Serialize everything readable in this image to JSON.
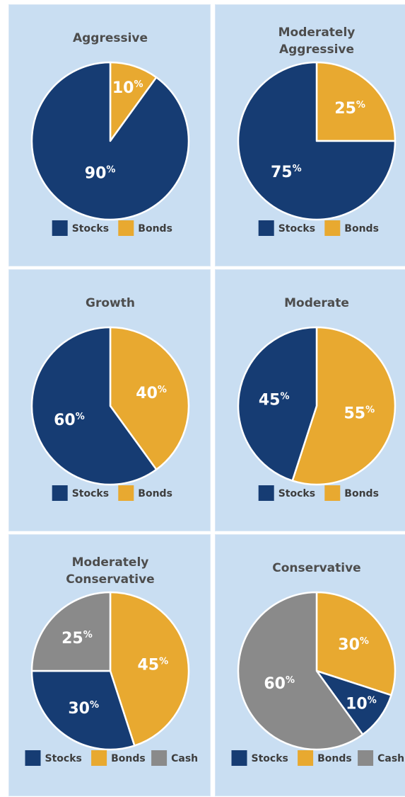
{
  "colors": {
    "stocks": "#163c73",
    "bonds": "#e8a930",
    "cash": "#8a8a8a",
    "background": "#c9def2",
    "divider": "#ffffff"
  },
  "chart_data": [
    {
      "type": "pie",
      "title": "Aggressive",
      "series": [
        {
          "name": "Stocks",
          "value": 90,
          "label": "90%",
          "color": "#163c73"
        },
        {
          "name": "Bonds",
          "value": 10,
          "label": "10%",
          "color": "#e8a930"
        }
      ]
    },
    {
      "type": "pie",
      "title": "Moderately Aggressive",
      "series": [
        {
          "name": "Stocks",
          "value": 75,
          "label": "75%",
          "color": "#163c73"
        },
        {
          "name": "Bonds",
          "value": 25,
          "label": "25%",
          "color": "#e8a930"
        }
      ]
    },
    {
      "type": "pie",
      "title": "Growth",
      "series": [
        {
          "name": "Stocks",
          "value": 60,
          "label": "60%",
          "color": "#163c73"
        },
        {
          "name": "Bonds",
          "value": 40,
          "label": "40%",
          "color": "#e8a930"
        }
      ]
    },
    {
      "type": "pie",
      "title": "Moderate",
      "series": [
        {
          "name": "Stocks",
          "value": 45,
          "label": "45%",
          "color": "#163c73"
        },
        {
          "name": "Bonds",
          "value": 55,
          "label": "55%",
          "color": "#e8a930"
        }
      ]
    },
    {
      "type": "pie",
      "title": "Moderately Conservative",
      "series": [
        {
          "name": "Stocks",
          "value": 30,
          "label": "30%",
          "color": "#163c73"
        },
        {
          "name": "Bonds",
          "value": 45,
          "label": "45%",
          "color": "#e8a930"
        },
        {
          "name": "Cash",
          "value": 25,
          "label": "25%",
          "color": "#8a8a8a"
        }
      ]
    },
    {
      "type": "pie",
      "title": "Conservative",
      "series": [
        {
          "name": "Stocks",
          "value": 10,
          "label": "10%",
          "color": "#163c73"
        },
        {
          "name": "Bonds",
          "value": 30,
          "label": "30%",
          "color": "#e8a930"
        },
        {
          "name": "Cash",
          "value": 60,
          "label": "60%",
          "color": "#8a8a8a"
        }
      ]
    }
  ]
}
